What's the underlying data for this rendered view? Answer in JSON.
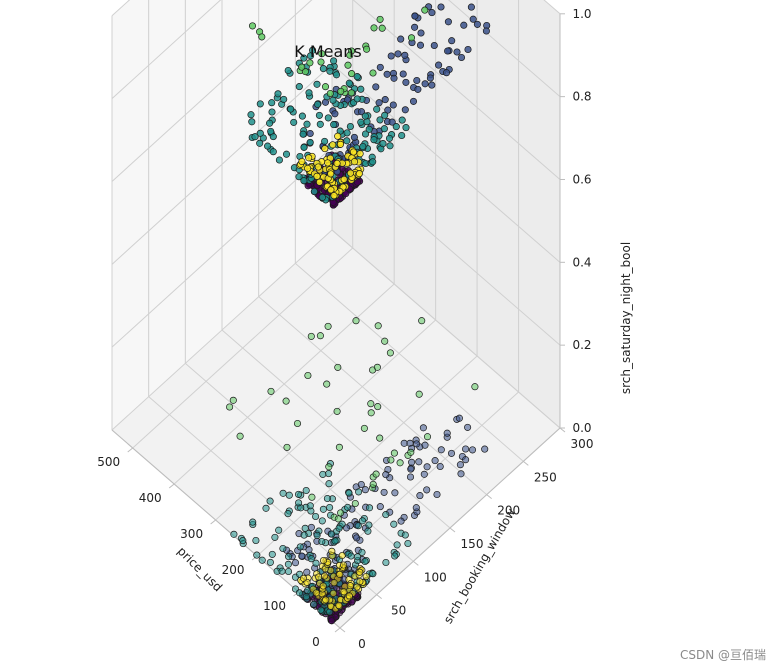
{
  "chart_data": {
    "type": "scatter",
    "title": "K Means",
    "projection": "3d",
    "grid": true,
    "axes": {
      "x": {
        "label": "price_usd",
        "range": [
          0,
          550
        ],
        "ticks": [
          0,
          100,
          200,
          300,
          400,
          500
        ]
      },
      "y": {
        "label": "srch_booking_window",
        "range": [
          0,
          300
        ],
        "ticks": [
          0,
          50,
          100,
          150,
          200,
          250,
          300
        ]
      },
      "z": {
        "label": "srch_saturday_night_bool",
        "range": [
          0,
          1
        ],
        "ticks": [
          "0.0",
          "0.2",
          "0.4",
          "0.6",
          "0.8",
          "1.0"
        ]
      }
    },
    "cluster_colors": [
      "#440154",
      "#3b528b",
      "#21918c",
      "#5ec962",
      "#fde725"
    ],
    "clusters": [
      {
        "id": 0,
        "color": "#440154",
        "price_range": [
          20,
          90
        ],
        "booking_window_range": [
          0,
          40
        ]
      },
      {
        "id": 1,
        "color": "#3b528b",
        "price_range": [
          60,
          180
        ],
        "booking_window_range": [
          20,
          250
        ]
      },
      {
        "id": 2,
        "color": "#21918c",
        "price_range": [
          30,
          260
        ],
        "booking_window_range": [
          0,
          120
        ]
      },
      {
        "id": 3,
        "color": "#5ec962",
        "price_range": [
          150,
          450
        ],
        "booking_window_range": [
          80,
          300
        ]
      },
      {
        "id": 4,
        "color": "#fde725",
        "price_range": [
          30,
          120
        ],
        "booking_window_range": [
          10,
          60
        ]
      }
    ],
    "saturday_levels": [
      0,
      1
    ]
  },
  "watermark": "CSDN @亘佰瑞"
}
